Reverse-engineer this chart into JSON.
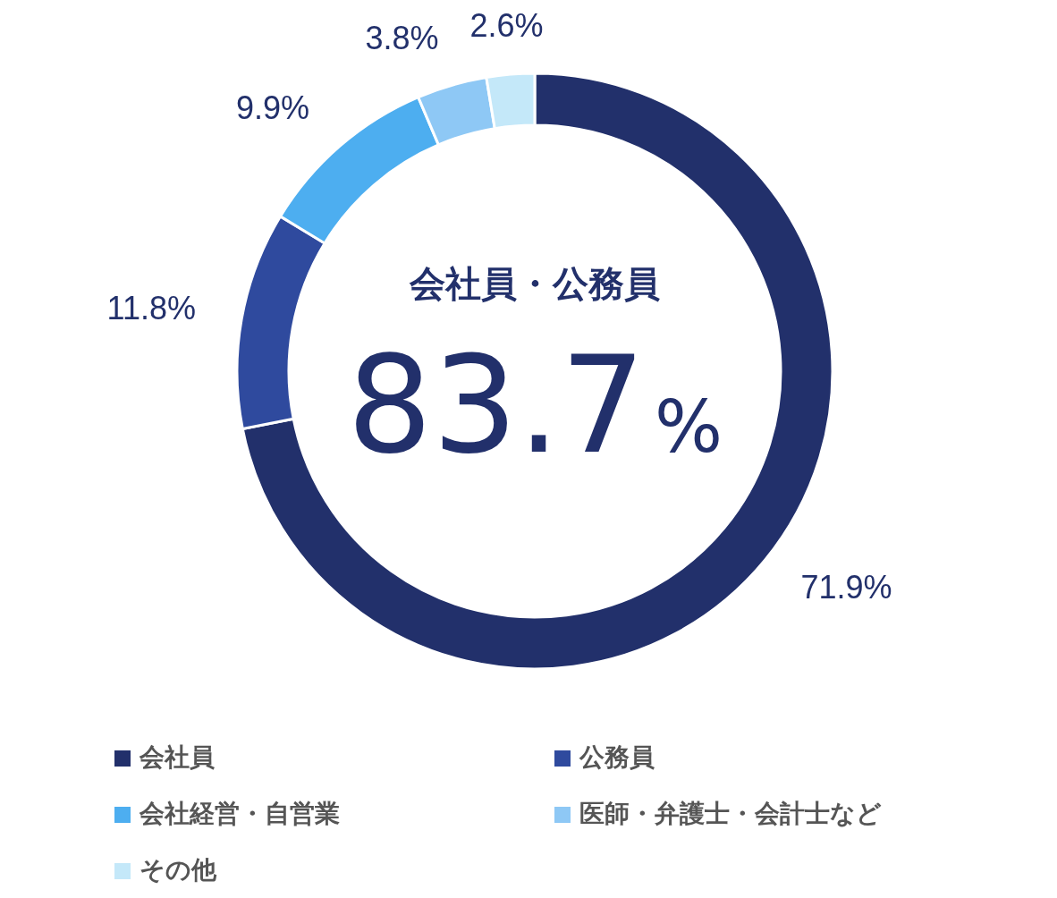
{
  "chart_data": {
    "type": "donut",
    "categories": [
      "会社員",
      "公務員",
      "会社経営・自営業",
      "医師・弁護士・会計士など",
      "その他"
    ],
    "values": [
      71.9,
      11.8,
      9.9,
      3.8,
      2.6
    ],
    "colors": [
      "#22306b",
      "#2f4a9e",
      "#4daef0",
      "#8ec8f5",
      "#c4e8f9"
    ],
    "value_labels": [
      "71.9%",
      "11.8%",
      "9.9%",
      "3.8%",
      "2.6%"
    ],
    "legend": "bottom",
    "annotations": [
      "会社員・公務員",
      "83.7%"
    ]
  }
}
